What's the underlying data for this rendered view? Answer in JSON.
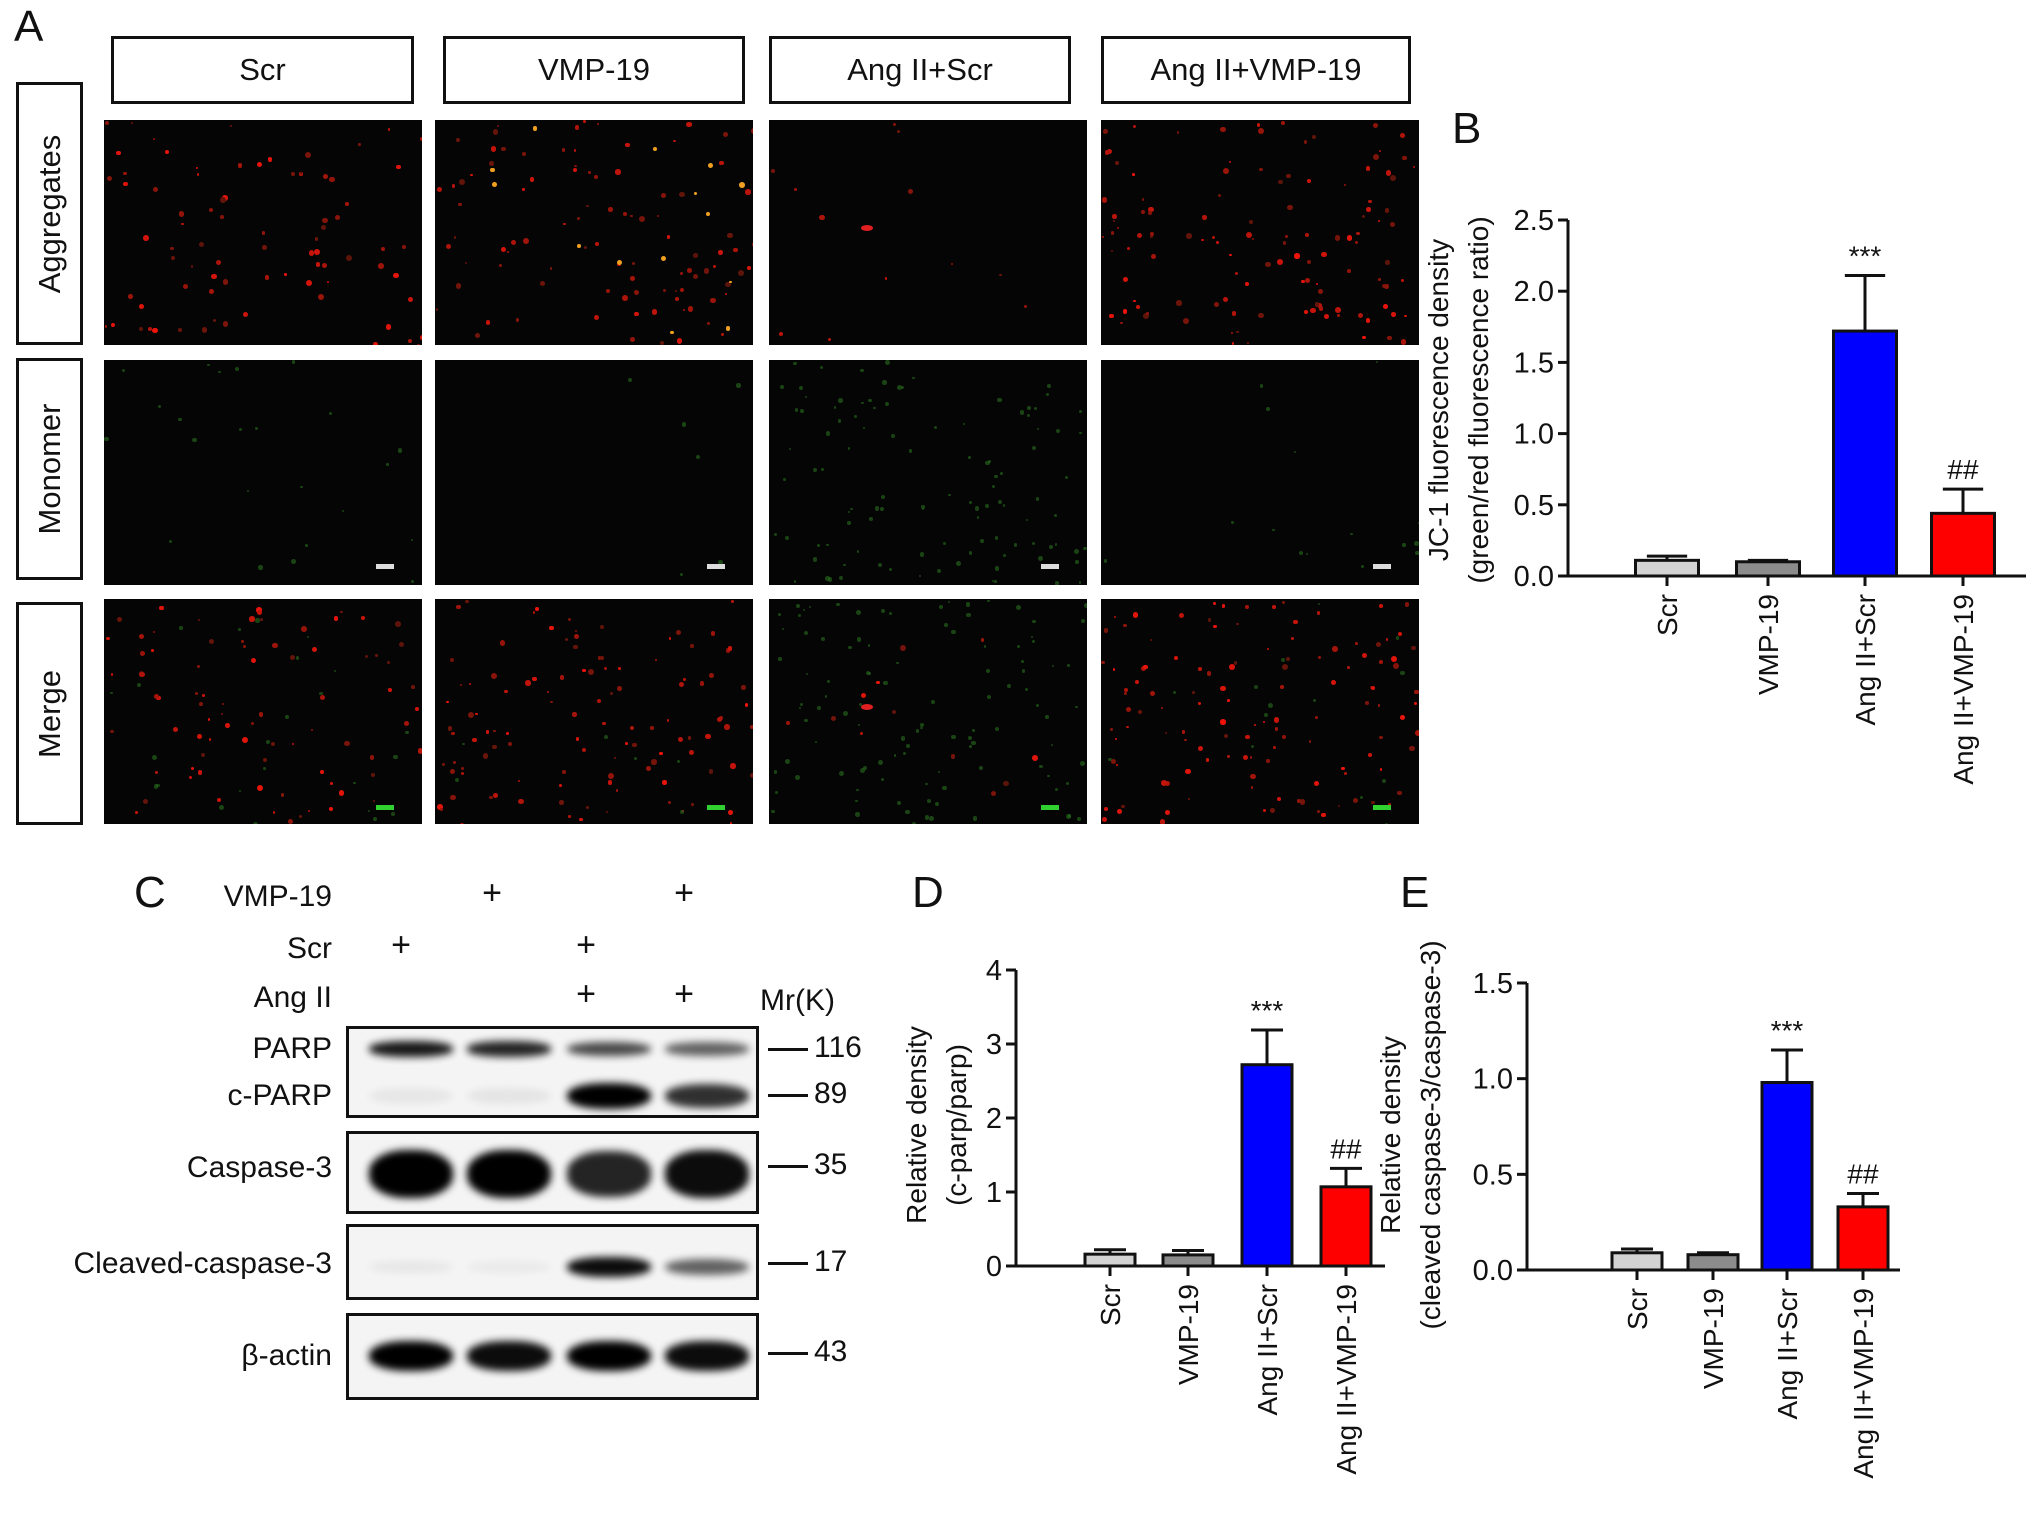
{
  "panel_labels": {
    "A": "A",
    "B": "B",
    "C": "C",
    "D": "D",
    "E": "E"
  },
  "panelA": {
    "columns": [
      "Scr",
      "VMP-19",
      "Ang II+Scr",
      "Ang II+VMP-19"
    ],
    "rows": [
      "Aggregates",
      "Monomer",
      "Merge"
    ]
  },
  "panelC": {
    "conditions": [
      {
        "label": "VMP-19",
        "lanes": [
          "",
          "+",
          "",
          "+"
        ]
      },
      {
        "label": "Scr",
        "lanes": [
          "+",
          "",
          "+",
          ""
        ]
      },
      {
        "label": "Ang II",
        "lanes": [
          "",
          "",
          "+",
          "+"
        ]
      }
    ],
    "mr_header": "Mr(K)",
    "proteins": [
      {
        "label": "PARP",
        "mw": "116"
      },
      {
        "label": "c-PARP",
        "mw": "89"
      },
      {
        "label": "Caspase-3",
        "mw": "35"
      },
      {
        "label": "Cleaved-caspase-3",
        "mw": "17"
      },
      {
        "label": "β-actin",
        "mw": "43"
      }
    ]
  },
  "colors": {
    "Scr": "#d3d3d3",
    "VMP-19": "#8c8c8c",
    "Ang II+Scr": "#0000ff",
    "Ang II+VMP-19": "#ff0000"
  },
  "chart_data": [
    {
      "panel": "B",
      "type": "bar",
      "categories": [
        "Scr",
        "VMP-19",
        "Ang II+Scr",
        "Ang II+VMP-19"
      ],
      "values": [
        0.11,
        0.1,
        1.72,
        0.44
      ],
      "error_upper": [
        0.14,
        0.11,
        2.11,
        0.61
      ],
      "annotations": [
        "",
        "",
        "***",
        "##"
      ],
      "ylabel": [
        "JC-1 fluorescence density",
        "(green/red fluorescence ratio)"
      ],
      "ylim": [
        0,
        2.5
      ],
      "yticks": [
        "0.0",
        "0.5",
        "1.0",
        "1.5",
        "2.0",
        "2.5"
      ],
      "grid": false
    },
    {
      "panel": "D",
      "type": "bar",
      "categories": [
        "Scr",
        "VMP-19",
        "Ang II+Scr",
        "Ang II+VMP-19"
      ],
      "values": [
        0.16,
        0.15,
        2.72,
        1.07
      ],
      "error_upper": [
        0.22,
        0.21,
        3.19,
        1.32
      ],
      "annotations": [
        "",
        "",
        "***",
        "##"
      ],
      "ylabel": [
        "Relative density",
        "(c-parp/parp)"
      ],
      "ylim": [
        0,
        4
      ],
      "yticks": [
        "0",
        "1",
        "2",
        "3",
        "4"
      ],
      "grid": false
    },
    {
      "panel": "E",
      "type": "bar",
      "categories": [
        "Scr",
        "VMP-19",
        "Ang II+Scr",
        "Ang II+VMP-19"
      ],
      "values": [
        0.09,
        0.08,
        0.98,
        0.33
      ],
      "error_upper": [
        0.11,
        0.09,
        1.15,
        0.4
      ],
      "annotations": [
        "",
        "",
        "***",
        "##"
      ],
      "ylabel": [
        "Relative density",
        "(cleaved caspase-3/caspase-3)"
      ],
      "ylim": [
        0,
        1.5
      ],
      "yticks": [
        "0.0",
        "0.5",
        "1.0",
        "1.5"
      ],
      "grid": false
    }
  ]
}
